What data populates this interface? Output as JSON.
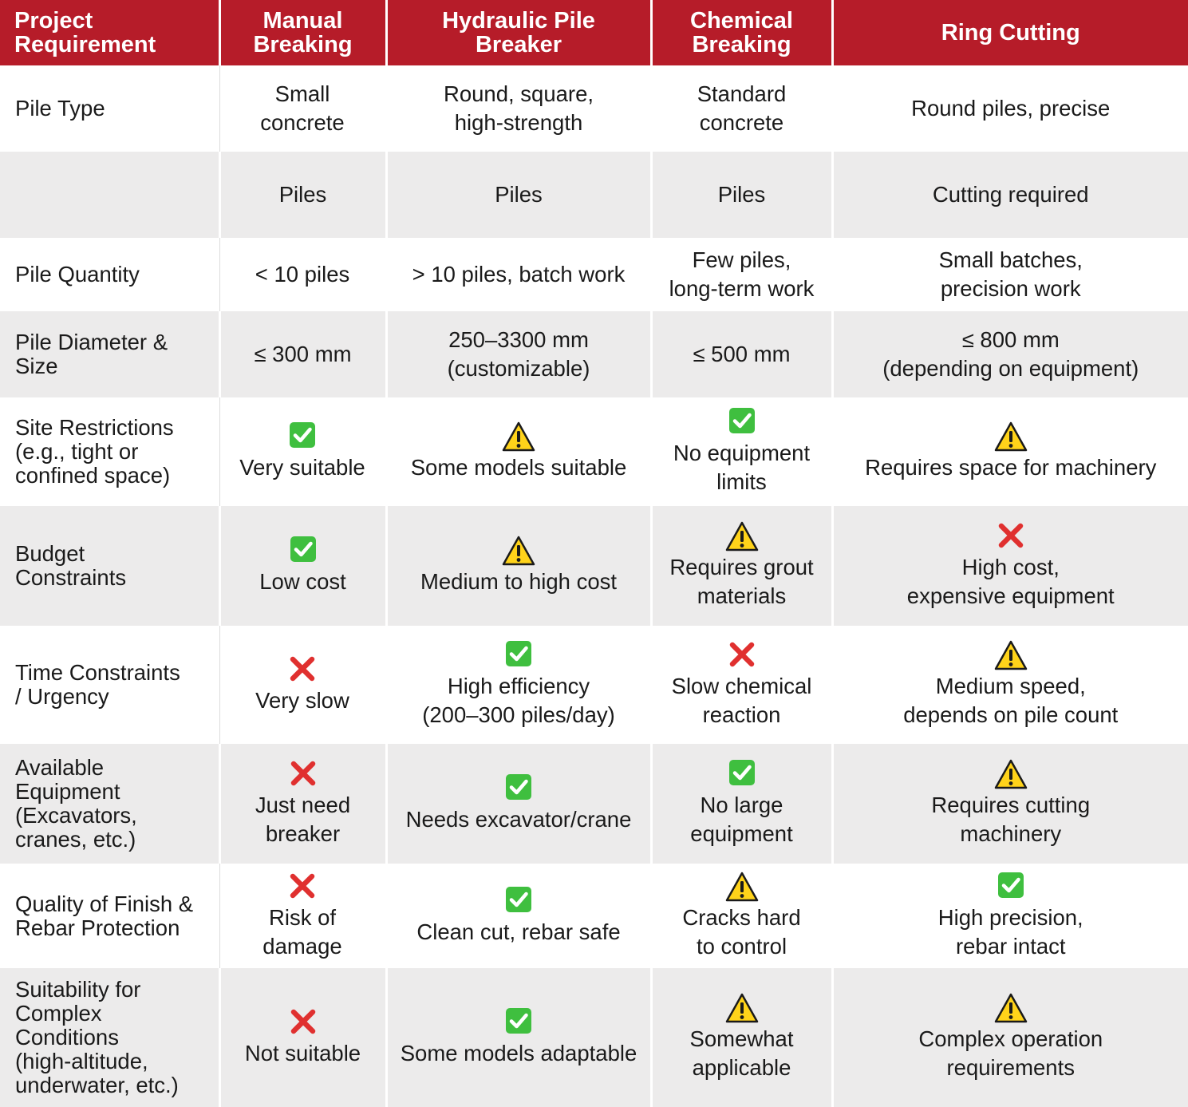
{
  "colors": {
    "header_bg": "#b61c29",
    "grey_row": "#ecebeb",
    "check": "#3fbf3f",
    "cross": "#e0302f",
    "warning": "#ffd31a"
  },
  "header": {
    "col0": "Project\nRequirement",
    "col1": "Manual\nBreaking",
    "col2": "Hydraulic Pile\nBreaker",
    "col3": "Chemical\nBreaking",
    "col4": "Ring Cutting"
  },
  "rows": [
    {
      "label": "Pile Type",
      "cells": [
        {
          "icon": "",
          "text": "Small\nconcrete"
        },
        {
          "icon": "",
          "text": "Round, square,\nhigh-strength"
        },
        {
          "icon": "",
          "text": "Standard\nconcrete"
        },
        {
          "icon": "",
          "text": "Round piles, precise"
        }
      ]
    },
    {
      "label": "",
      "cells": [
        {
          "icon": "",
          "text": "Piles"
        },
        {
          "icon": "",
          "text": "Piles"
        },
        {
          "icon": "",
          "text": "Piles"
        },
        {
          "icon": "",
          "text": "Cutting required"
        }
      ]
    },
    {
      "label": "Pile Quantity",
      "cells": [
        {
          "icon": "",
          "text": "< 10 piles"
        },
        {
          "icon": "",
          "text": "> 10 piles, batch work"
        },
        {
          "icon": "",
          "text": "Few piles,\nlong-term work"
        },
        {
          "icon": "",
          "text": "Small batches,\nprecision work"
        }
      ]
    },
    {
      "label": "Pile Diameter &\nSize",
      "cells": [
        {
          "icon": "",
          "text": "≤ 300 mm"
        },
        {
          "icon": "",
          "text": "250–3300 mm\n(customizable)"
        },
        {
          "icon": "",
          "text": "≤ 500 mm"
        },
        {
          "icon": "",
          "text": "≤ 800 mm\n(depending on equipment)"
        }
      ]
    },
    {
      "label": "Site Restrictions\n(e.g., tight or\nconfined space)",
      "cells": [
        {
          "icon": "check",
          "text": "Very suitable"
        },
        {
          "icon": "warning",
          "text": "Some models suitable"
        },
        {
          "icon": "check",
          "text": "No equipment\nlimits"
        },
        {
          "icon": "warning",
          "text": "Requires space for machinery"
        }
      ]
    },
    {
      "label": "Budget\nConstraints",
      "cells": [
        {
          "icon": "check",
          "text": "Low cost"
        },
        {
          "icon": "warning",
          "text": "Medium to high cost"
        },
        {
          "icon": "warning",
          "text": "Requires grout\nmaterials"
        },
        {
          "icon": "cross",
          "text": "High cost,\nexpensive equipment"
        }
      ]
    },
    {
      "label": "Time Constraints\n/ Urgency",
      "cells": [
        {
          "icon": "cross",
          "text": "Very slow"
        },
        {
          "icon": "check",
          "text": "High efficiency\n(200–300 piles/day)"
        },
        {
          "icon": "cross",
          "text": "Slow chemical\nreaction"
        },
        {
          "icon": "warning",
          "text": "Medium speed,\ndepends on pile count"
        }
      ]
    },
    {
      "label": "Available\nEquipment\n(Excavators,\ncranes, etc.)",
      "cells": [
        {
          "icon": "cross",
          "text": "Just need\nbreaker"
        },
        {
          "icon": "check",
          "text": "Needs excavator/crane"
        },
        {
          "icon": "check",
          "text": "No large\nequipment"
        },
        {
          "icon": "warning",
          "text": "Requires cutting\nmachinery"
        }
      ]
    },
    {
      "label": "Quality of Finish &\n Rebar Protection",
      "cells": [
        {
          "icon": "cross",
          "text": "Risk of\ndamage"
        },
        {
          "icon": "check",
          "text": "Clean cut, rebar safe"
        },
        {
          "icon": "warning",
          "text": "Cracks hard\nto control"
        },
        {
          "icon": "check",
          "text": "High precision,\nrebar intact"
        }
      ]
    },
    {
      "label": "Suitability for\nComplex\nConditions\n(high-altitude,\nunderwater, etc.)",
      "cells": [
        {
          "icon": "cross",
          "text": "Not suitable"
        },
        {
          "icon": "check",
          "text": "Some models adaptable"
        },
        {
          "icon": "warning",
          "text": "Somewhat\napplicable"
        },
        {
          "icon": "warning",
          "text": "Complex operation\nrequirements"
        }
      ]
    }
  ]
}
